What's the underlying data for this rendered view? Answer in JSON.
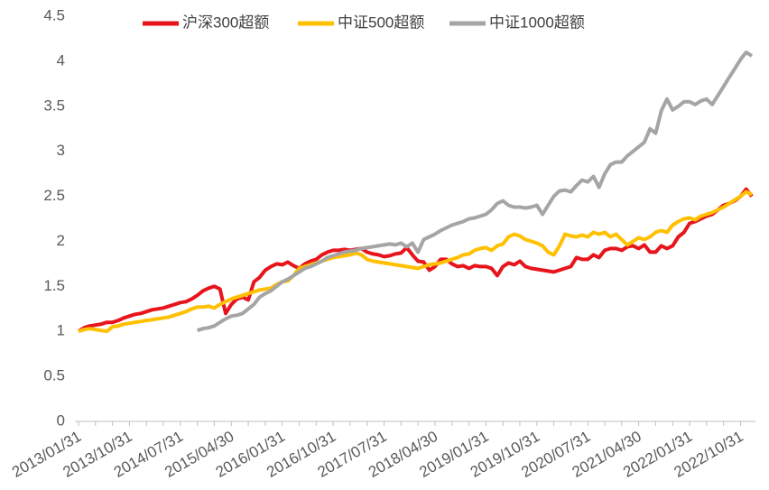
{
  "chart_data": {
    "type": "line",
    "categories": [
      "2013/01/31",
      null,
      null,
      null,
      null,
      null,
      null,
      null,
      null,
      "2013/10/31",
      null,
      null,
      null,
      null,
      null,
      null,
      null,
      null,
      "2014/07/31",
      null,
      null,
      null,
      null,
      null,
      null,
      null,
      null,
      "2015/04/30",
      null,
      null,
      null,
      null,
      null,
      null,
      null,
      null,
      "2016/01/31",
      null,
      null,
      null,
      null,
      null,
      null,
      null,
      null,
      "2016/10/31",
      null,
      null,
      null,
      null,
      null,
      null,
      null,
      null,
      "2017/07/31",
      null,
      null,
      null,
      null,
      null,
      null,
      null,
      null,
      "2018/04/30",
      null,
      null,
      null,
      null,
      null,
      null,
      null,
      null,
      "2019/01/31",
      null,
      null,
      null,
      null,
      null,
      null,
      null,
      null,
      "2019/10/31",
      null,
      null,
      null,
      null,
      null,
      null,
      null,
      null,
      "2020/07/31",
      null,
      null,
      null,
      null,
      null,
      null,
      null,
      null,
      "2021/04/30",
      null,
      null,
      null,
      null,
      null,
      null,
      null,
      null,
      "2022/01/31",
      null,
      null,
      null,
      null,
      null,
      null,
      null,
      null,
      "2022/10/31",
      null,
      null
    ],
    "series": [
      {
        "name": "沪深300超额",
        "color": "#e8141b",
        "values": [
          1.0,
          1.04,
          1.06,
          1.07,
          1.08,
          1.1,
          1.1,
          1.12,
          1.15,
          1.17,
          1.19,
          1.2,
          1.22,
          1.24,
          1.25,
          1.26,
          1.28,
          1.3,
          1.32,
          1.33,
          1.36,
          1.4,
          1.45,
          1.48,
          1.5,
          1.47,
          1.2,
          1.3,
          1.36,
          1.38,
          1.35,
          1.55,
          1.6,
          1.68,
          1.72,
          1.75,
          1.74,
          1.77,
          1.73,
          1.7,
          1.75,
          1.78,
          1.8,
          1.85,
          1.88,
          1.9,
          1.9,
          1.91,
          1.9,
          1.91,
          1.92,
          1.88,
          1.86,
          1.85,
          1.83,
          1.84,
          1.86,
          1.87,
          1.93,
          1.85,
          1.78,
          1.77,
          1.68,
          1.72,
          1.8,
          1.8,
          1.75,
          1.72,
          1.73,
          1.7,
          1.73,
          1.72,
          1.72,
          1.7,
          1.62,
          1.72,
          1.76,
          1.74,
          1.78,
          1.72,
          1.7,
          1.69,
          1.68,
          1.67,
          1.66,
          1.68,
          1.7,
          1.72,
          1.82,
          1.8,
          1.8,
          1.85,
          1.82,
          1.9,
          1.92,
          1.92,
          1.9,
          1.94,
          1.95,
          1.92,
          1.96,
          1.88,
          1.88,
          1.95,
          1.92,
          1.95,
          2.05,
          2.1,
          2.2,
          2.22,
          2.25,
          2.28,
          2.3,
          2.35,
          2.4,
          2.42,
          2.45,
          2.5,
          2.58,
          2.5
        ]
      },
      {
        "name": "中证500超额",
        "color": "#ffc000",
        "values": [
          1.0,
          1.02,
          1.03,
          1.02,
          1.01,
          1.0,
          1.05,
          1.06,
          1.08,
          1.09,
          1.1,
          1.11,
          1.12,
          1.13,
          1.14,
          1.15,
          1.16,
          1.18,
          1.2,
          1.22,
          1.25,
          1.27,
          1.27,
          1.28,
          1.26,
          1.3,
          1.33,
          1.36,
          1.38,
          1.4,
          1.42,
          1.44,
          1.46,
          1.47,
          1.48,
          1.52,
          1.55,
          1.56,
          1.62,
          1.7,
          1.72,
          1.74,
          1.76,
          1.78,
          1.8,
          1.82,
          1.83,
          1.84,
          1.85,
          1.87,
          1.85,
          1.8,
          1.78,
          1.77,
          1.76,
          1.75,
          1.74,
          1.73,
          1.72,
          1.71,
          1.7,
          1.72,
          1.74,
          1.75,
          1.76,
          1.78,
          1.8,
          1.82,
          1.85,
          1.86,
          1.9,
          1.92,
          1.93,
          1.9,
          1.95,
          1.97,
          2.05,
          2.08,
          2.06,
          2.02,
          2.0,
          1.98,
          1.95,
          1.88,
          1.85,
          1.95,
          2.08,
          2.06,
          2.05,
          2.07,
          2.05,
          2.1,
          2.08,
          2.1,
          2.05,
          2.08,
          2.02,
          1.96,
          2.0,
          2.04,
          2.02,
          2.05,
          2.1,
          2.12,
          2.1,
          2.18,
          2.22,
          2.25,
          2.26,
          2.24,
          2.28,
          2.3,
          2.32,
          2.35,
          2.38,
          2.42,
          2.46,
          2.5,
          2.55,
          2.52
        ]
      },
      {
        "name": "中证1000超额",
        "color": "#a5a5a5",
        "values": [
          null,
          null,
          null,
          null,
          null,
          null,
          null,
          null,
          null,
          null,
          null,
          null,
          null,
          null,
          null,
          null,
          null,
          null,
          null,
          null,
          null,
          1.01,
          1.03,
          1.04,
          1.06,
          1.1,
          1.14,
          1.17,
          1.18,
          1.2,
          1.25,
          1.3,
          1.38,
          1.42,
          1.45,
          1.5,
          1.55,
          1.58,
          1.62,
          1.66,
          1.7,
          1.72,
          1.75,
          1.78,
          1.82,
          1.84,
          1.86,
          1.88,
          1.89,
          1.9,
          1.92,
          1.93,
          1.94,
          1.95,
          1.96,
          1.97,
          1.96,
          1.98,
          1.94,
          1.98,
          1.88,
          2.02,
          2.05,
          2.08,
          2.12,
          2.15,
          2.18,
          2.2,
          2.22,
          2.25,
          2.26,
          2.28,
          2.3,
          2.35,
          2.42,
          2.45,
          2.4,
          2.38,
          2.38,
          2.37,
          2.38,
          2.4,
          2.3,
          2.4,
          2.5,
          2.56,
          2.57,
          2.55,
          2.62,
          2.68,
          2.66,
          2.72,
          2.6,
          2.75,
          2.85,
          2.88,
          2.88,
          2.95,
          3.0,
          3.05,
          3.1,
          3.25,
          3.2,
          3.45,
          3.58,
          3.46,
          3.5,
          3.55,
          3.55,
          3.52,
          3.56,
          3.58,
          3.52,
          3.62,
          3.72,
          3.82,
          3.92,
          4.02,
          4.1,
          4.06
        ]
      }
    ],
    "ylim": [
      0,
      4.5
    ],
    "yticks": [
      0,
      0.5,
      1,
      1.5,
      2,
      2.5,
      3,
      3.5,
      4,
      4.5
    ],
    "legend": "top"
  }
}
